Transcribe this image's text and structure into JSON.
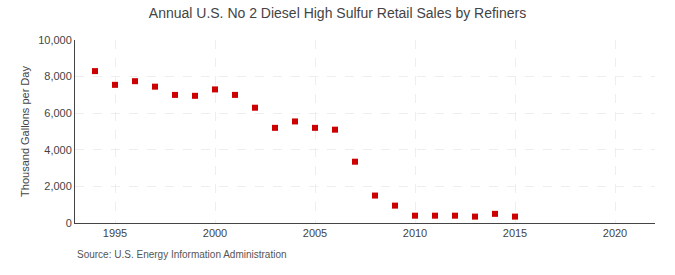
{
  "chart_data": {
    "type": "scatter",
    "title": "Annual U.S. No 2 Diesel High Sulfur Retail Sales by Refiners",
    "y_label": "Thousand Gallons per Day",
    "annotations": [
      "Source: U.S. Energy Information Administration"
    ],
    "x": [
      1994,
      1995,
      1996,
      1997,
      1998,
      1999,
      2000,
      2001,
      2002,
      2003,
      2004,
      2005,
      2006,
      2007,
      2008,
      2009,
      2010,
      2011,
      2012,
      2013,
      2014,
      2015
    ],
    "values": [
      8300,
      7550,
      7750,
      7450,
      7000,
      6950,
      7300,
      7000,
      6300,
      5200,
      5550,
      5200,
      5100,
      3350,
      1500,
      950,
      400,
      400,
      400,
      350,
      500,
      350
    ],
    "color": "#cc0000",
    "marker": "square",
    "xlim": [
      1993,
      2022
    ],
    "xticks": [
      1995,
      2000,
      2005,
      2010,
      2015,
      2020
    ],
    "ylim": [
      0,
      10000
    ],
    "yticks": [
      0,
      {
        "value": 2000,
        "label": "2,000"
      },
      {
        "value": 4000,
        "label": "4,000"
      },
      {
        "value": 6000,
        "label": "6,000"
      },
      {
        "value": 8000,
        "label": "8,000"
      },
      {
        "value": 10000,
        "label": "10,000"
      }
    ],
    "grid": true
  }
}
